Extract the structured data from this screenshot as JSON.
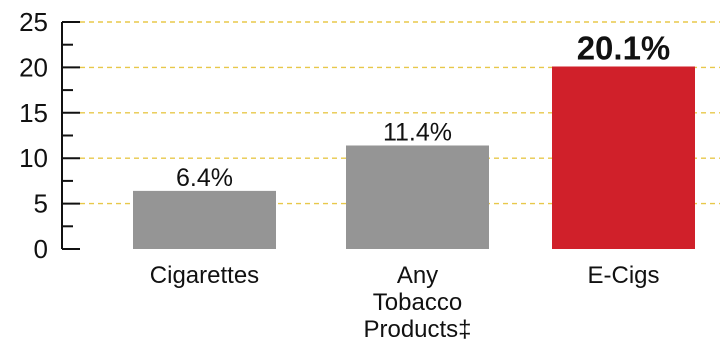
{
  "chart_data": {
    "type": "bar",
    "categories": [
      [
        "Cigarettes"
      ],
      [
        "Any",
        "Tobacco",
        "Products‡"
      ],
      [
        "E-Cigs"
      ]
    ],
    "values": [
      6.4,
      11.4,
      20.1
    ],
    "data_labels": [
      "6.4%",
      "11.4%",
      "20.1%"
    ],
    "highlight_index": 2,
    "colors": {
      "bar": "#959595",
      "highlight": "#d0202a",
      "grid": "#e8c84a",
      "axis": "#111111"
    },
    "ylim": [
      0,
      25
    ],
    "yticks": [
      0,
      5,
      10,
      15,
      20,
      25
    ],
    "grid": true,
    "title": "",
    "xlabel": "",
    "ylabel": ""
  }
}
